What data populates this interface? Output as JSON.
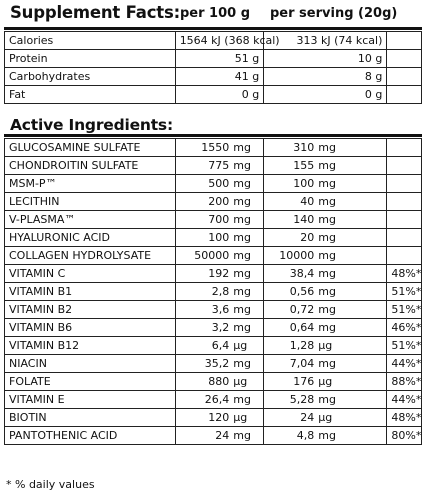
{
  "header": {
    "title": "Supplement Facts:",
    "col_per100": "per 100 g",
    "col_serving": "per serving (20g)"
  },
  "nutrition": [
    {
      "name": "Calories",
      "per100": "1564 kJ (368 kcal)",
      "serving": "313 kJ (74 kcal)"
    },
    {
      "name": "Protein",
      "per100": "51 g",
      "serving": "10 g"
    },
    {
      "name": "Carbohydrates",
      "per100": "41 g",
      "serving": "8 g"
    },
    {
      "name": "Fat",
      "per100": "0 g",
      "serving": "0 g"
    }
  ],
  "active_title": "Active Ingredients:",
  "ingredients": [
    {
      "name": "GLUCOSAMINE SULFATE",
      "per100": "1550",
      "per100_unit": "mg",
      "serving": "310",
      "serving_unit": "mg",
      "dv": ""
    },
    {
      "name": "CHONDROITIN SULFATE",
      "per100": "775",
      "per100_unit": "mg",
      "serving": "155",
      "serving_unit": "mg",
      "dv": ""
    },
    {
      "name": "MSM-P™",
      "per100": "500",
      "per100_unit": "mg",
      "serving": "100",
      "serving_unit": "mg",
      "dv": ""
    },
    {
      "name": "LECITHIN",
      "per100": "200",
      "per100_unit": "mg",
      "serving": "40",
      "serving_unit": "mg",
      "dv": ""
    },
    {
      "name": "V-PLASMA™",
      "per100": "700",
      "per100_unit": "mg",
      "serving": "140",
      "serving_unit": "mg",
      "dv": ""
    },
    {
      "name": "HYALURONIC ACID",
      "per100": "100",
      "per100_unit": "mg",
      "serving": "20",
      "serving_unit": "mg",
      "dv": ""
    },
    {
      "name": "COLLAGEN HYDROLYSATE",
      "per100": "50000",
      "per100_unit": "mg",
      "serving": "10000",
      "serving_unit": "mg",
      "dv": ""
    },
    {
      "name": "VITAMIN C",
      "per100": "192",
      "per100_unit": "mg",
      "serving": "38,4",
      "serving_unit": "mg",
      "dv": "48%*"
    },
    {
      "name": "VITAMIN B1",
      "per100": "2,8",
      "per100_unit": "mg",
      "serving": "0,56",
      "serving_unit": "mg",
      "dv": "51%*"
    },
    {
      "name": "VITAMIN B2",
      "per100": "3,6",
      "per100_unit": "mg",
      "serving": "0,72",
      "serving_unit": "mg",
      "dv": "51%*"
    },
    {
      "name": "VITAMIN B6",
      "per100": "3,2",
      "per100_unit": "mg",
      "serving": "0,64",
      "serving_unit": "mg",
      "dv": "46%*"
    },
    {
      "name": "VITAMIN B12",
      "per100": "6,4",
      "per100_unit": "µg",
      "serving": "1,28",
      "serving_unit": "µg",
      "dv": "51%*"
    },
    {
      "name": "NIACIN",
      "per100": "35,2",
      "per100_unit": "mg",
      "serving": "7,04",
      "serving_unit": "mg",
      "dv": "44%*"
    },
    {
      "name": "FOLATE",
      "per100": "880",
      "per100_unit": "µg",
      "serving": "176",
      "serving_unit": "µg",
      "dv": "88%*"
    },
    {
      "name": "VITAMIN E",
      "per100": "26,4",
      "per100_unit": "mg",
      "serving": "5,28",
      "serving_unit": "mg",
      "dv": "44%*"
    },
    {
      "name": "BIOTIN",
      "per100": "120",
      "per100_unit": "µg",
      "serving": "24",
      "serving_unit": "µg",
      "dv": "48%*"
    },
    {
      "name": "PANTOTHENIC ACID",
      "per100": "24",
      "per100_unit": "mg",
      "serving": "4,8",
      "serving_unit": "mg",
      "dv": "80%*"
    }
  ],
  "footnote": "* % daily values"
}
